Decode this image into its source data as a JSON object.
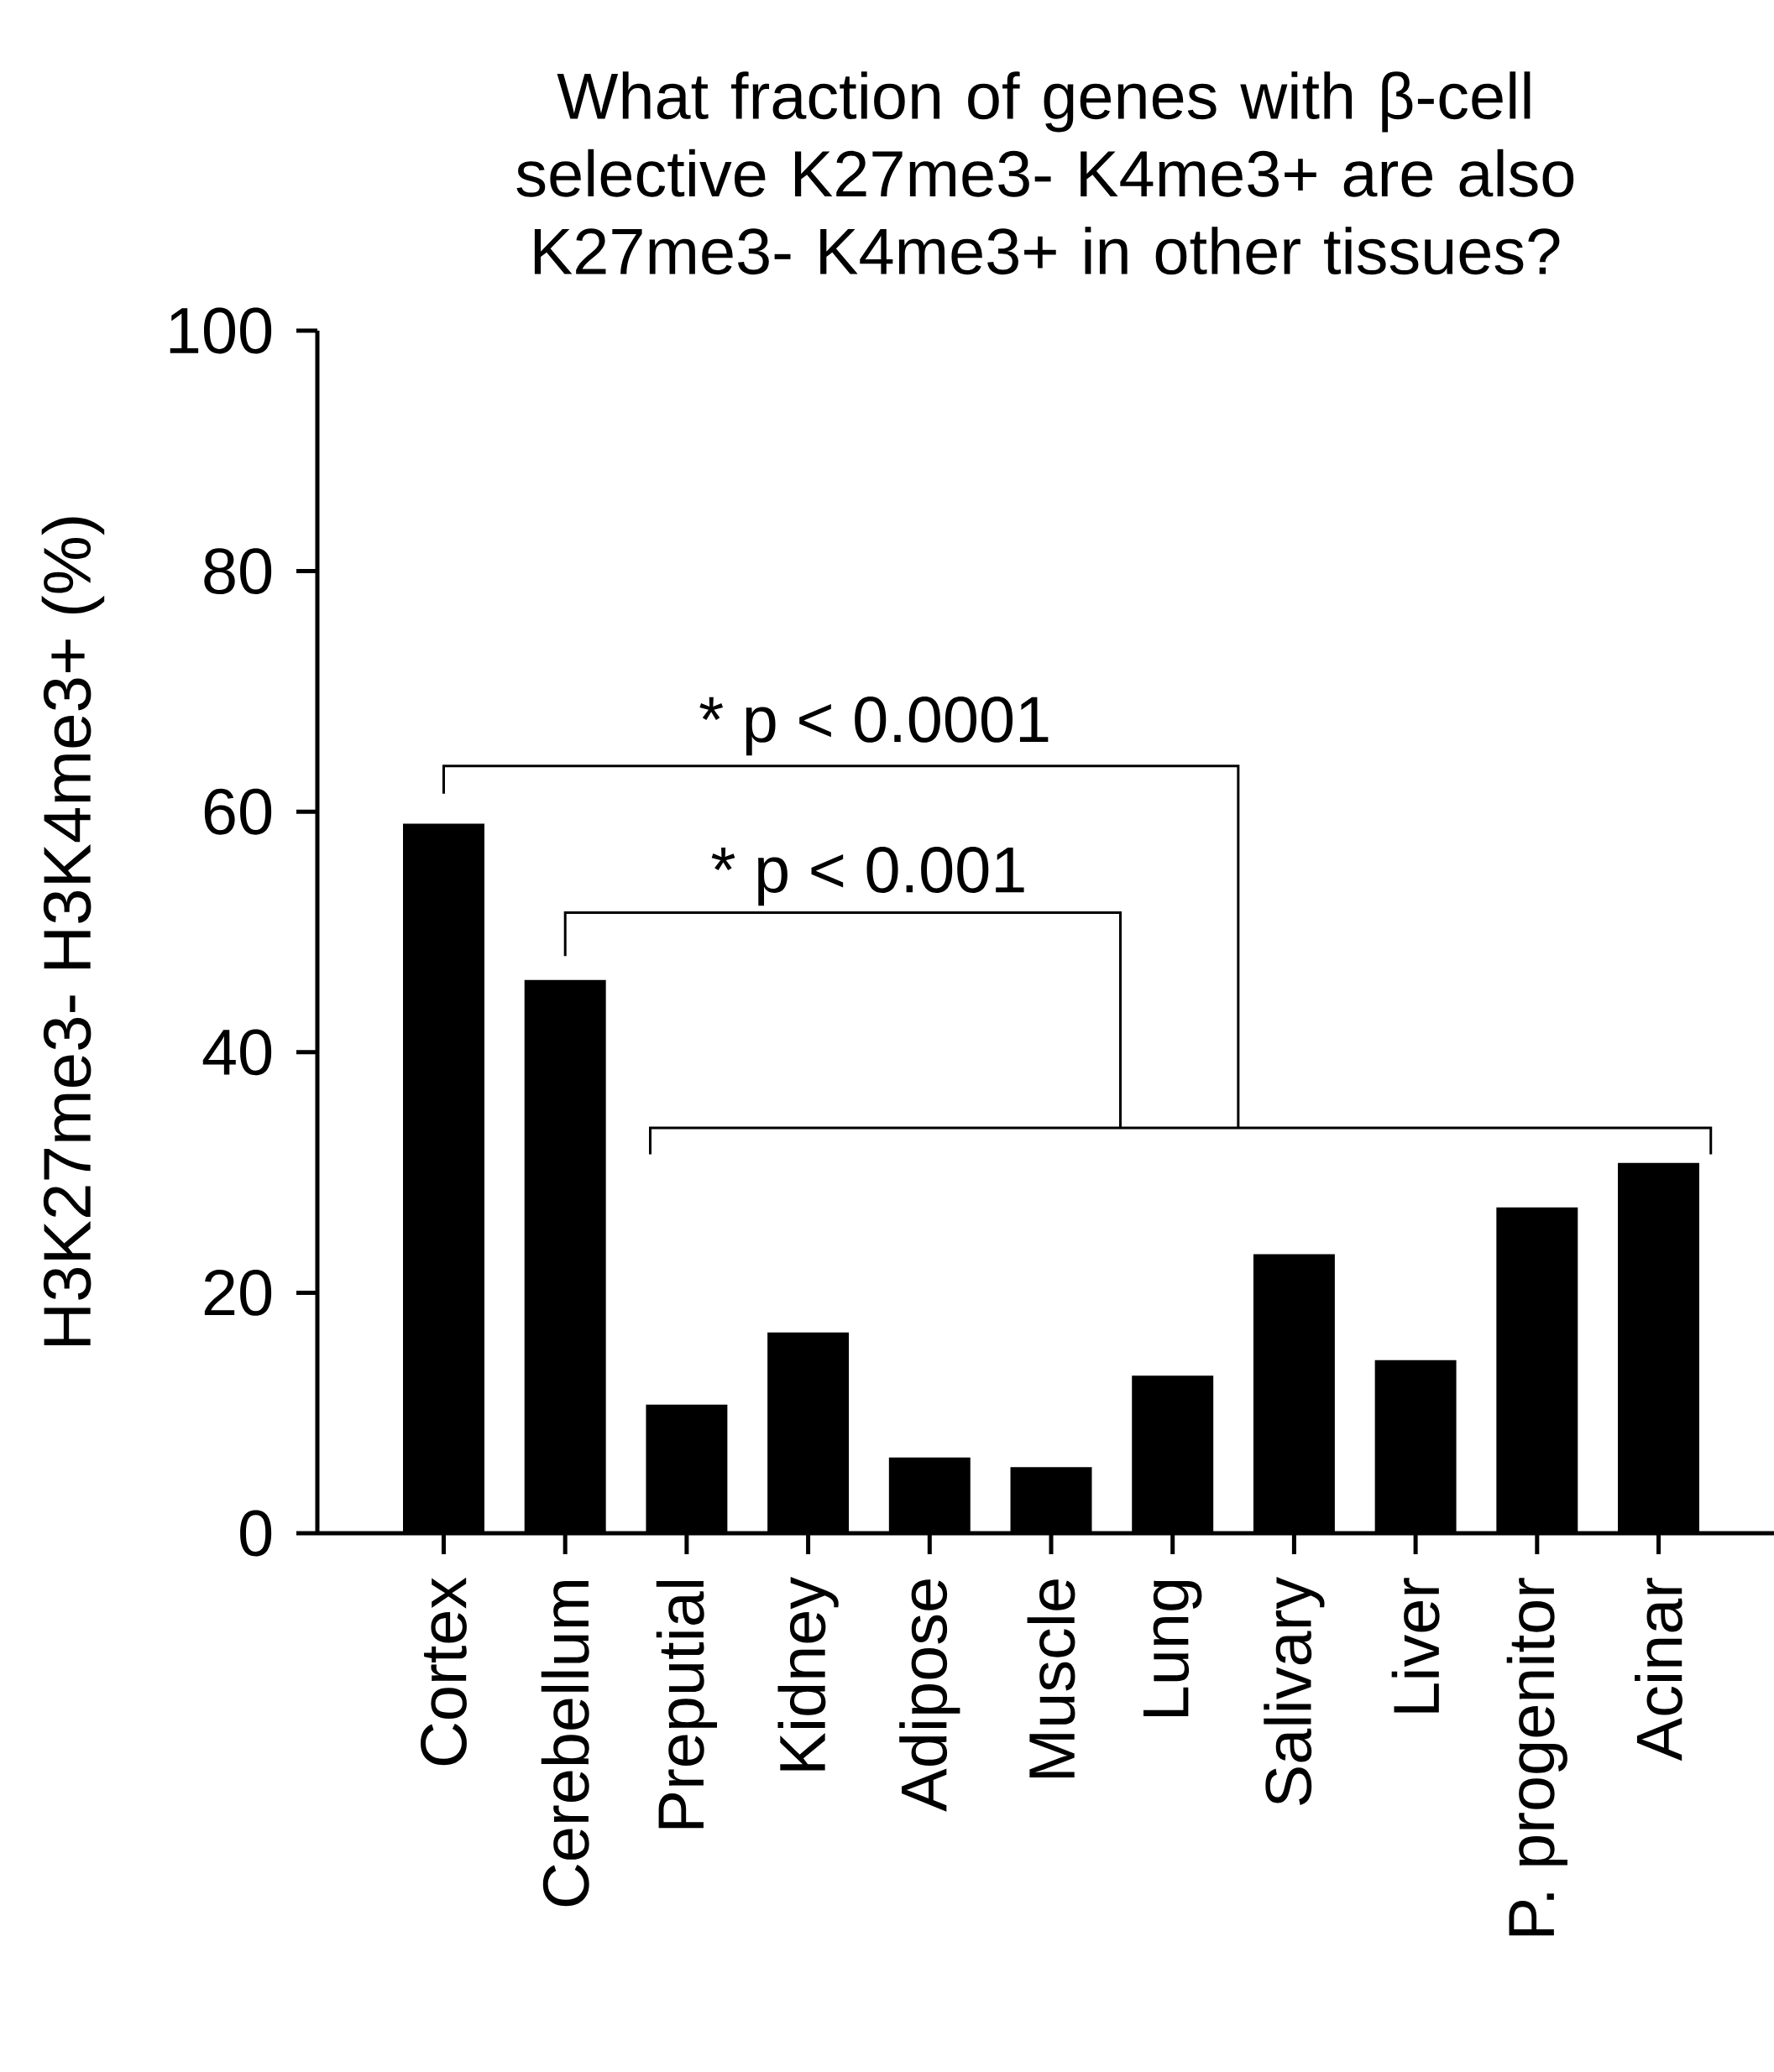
{
  "chart_data": {
    "type": "bar",
    "title": "What fraction of genes with β-cell selective K27me3- K4me3+ are also K27me3- K4me3+ in other tissues?",
    "ylabel": "H3K27me3- H3K4me3+ (%)",
    "categories": [
      "Cortex",
      "Cerebellum",
      "Preputial",
      "Kidney",
      "Adipose",
      "Muscle",
      "Lung",
      "Salivary",
      "Liver",
      "P. progenitor",
      "Acinar"
    ],
    "values": [
      59,
      46,
      10.7,
      16.7,
      6.3,
      5.5,
      13.1,
      23.2,
      14.4,
      27.1,
      30.8
    ],
    "color": "#000000",
    "ylim": [
      0,
      100
    ],
    "yticks": [
      0,
      20,
      40,
      60,
      80,
      100
    ],
    "grid": false,
    "annotations": [
      "* p < 0.0001",
      "* p < 0.001"
    ]
  }
}
